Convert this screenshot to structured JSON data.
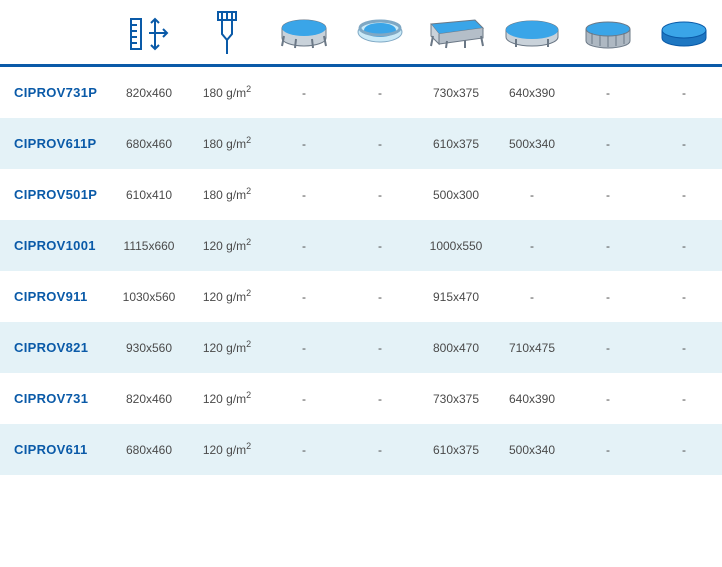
{
  "colors": {
    "brand": "#0a5aa8",
    "row_even_bg": "#ffffff",
    "row_odd_bg": "#e4f2f7",
    "text": "#4a4a4a",
    "pool_water": "#3aa5e8",
    "pool_frame": "#9aa6b2"
  },
  "header_icons": [
    "dimensions-icon",
    "weight-icon",
    "pool-frame-round-icon",
    "pool-inflatable-round-icon",
    "pool-rect-frame-icon",
    "pool-oval-icon",
    "pool-steel-round-icon",
    "pool-round-icon"
  ],
  "rows": [
    {
      "code": "CIPROV731P",
      "dim": "820x460",
      "weight": "180 g/m",
      "p1": "-",
      "p2": "-",
      "p3": "730x375",
      "p4": "640x390",
      "p5": "-",
      "p6": "-"
    },
    {
      "code": "CIPROV611P",
      "dim": "680x460",
      "weight": "180 g/m",
      "p1": "-",
      "p2": "-",
      "p3": "610x375",
      "p4": "500x340",
      "p5": "-",
      "p6": "-"
    },
    {
      "code": "CIPROV501P",
      "dim": "610x410",
      "weight": "180 g/m",
      "p1": "-",
      "p2": "-",
      "p3": "500x300",
      "p4": "-",
      "p5": "-",
      "p6": "-"
    },
    {
      "code": "CIPROV1001",
      "dim": "1115x660",
      "weight": "120 g/m",
      "p1": "-",
      "p2": "-",
      "p3": "1000x550",
      "p4": "-",
      "p5": "-",
      "p6": "-"
    },
    {
      "code": "CIPROV911",
      "dim": "1030x560",
      "weight": "120 g/m",
      "p1": "-",
      "p2": "-",
      "p3": "915x470",
      "p4": "-",
      "p5": "-",
      "p6": "-"
    },
    {
      "code": "CIPROV821",
      "dim": "930x560",
      "weight": "120 g/m",
      "p1": "-",
      "p2": "-",
      "p3": "800x470",
      "p4": "710x475",
      "p5": "-",
      "p6": "-"
    },
    {
      "code": "CIPROV731",
      "dim": "820x460",
      "weight": "120 g/m",
      "p1": "-",
      "p2": "-",
      "p3": "730x375",
      "p4": "640x390",
      "p5": "-",
      "p6": "-"
    },
    {
      "code": "CIPROV611",
      "dim": "680x460",
      "weight": "120 g/m",
      "p1": "-",
      "p2": "-",
      "p3": "610x375",
      "p4": "500x340",
      "p5": "-",
      "p6": "-"
    }
  ]
}
